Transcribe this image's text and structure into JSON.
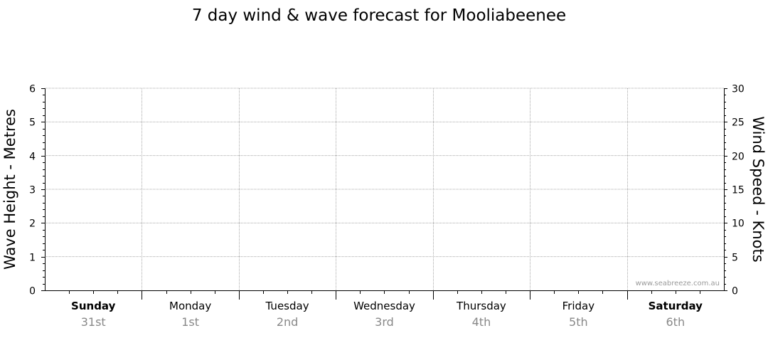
{
  "chart_data": {
    "type": "line",
    "title": "7 day wind & wave forecast for Mooliabeenee",
    "ylabel_left": "Wave Height - Metres",
    "ylabel_right": "Wind Speed - Knots",
    "y_left": {
      "lim": [
        0,
        6
      ],
      "ticks": [
        0,
        1,
        2,
        3,
        4,
        5,
        6
      ]
    },
    "y_right": {
      "lim": [
        0,
        30
      ],
      "ticks": [
        0,
        5,
        10,
        15,
        20,
        25,
        30
      ]
    },
    "days": [
      {
        "name": "Sunday",
        "date": "31st",
        "bold": true
      },
      {
        "name": "Monday",
        "date": "1st",
        "bold": false
      },
      {
        "name": "Tuesday",
        "date": "2nd",
        "bold": false
      },
      {
        "name": "Wednesday",
        "date": "3rd",
        "bold": false
      },
      {
        "name": "Thursday",
        "date": "4th",
        "bold": false
      },
      {
        "name": "Friday",
        "date": "5th",
        "bold": false
      },
      {
        "name": "Saturday",
        "date": "6th",
        "bold": true
      }
    ],
    "series": [],
    "grid": true,
    "watermark": "www.seabreeze.com.au"
  }
}
